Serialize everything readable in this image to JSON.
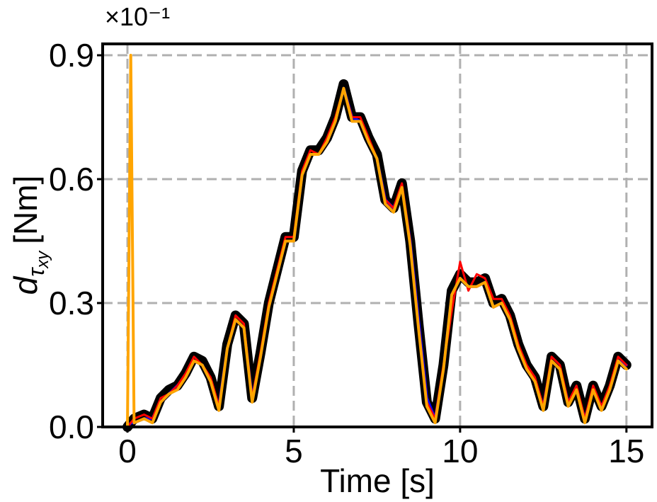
{
  "chart_data": {
    "type": "line",
    "offset_text": "×10⁻¹",
    "xlabel": "Time [s]",
    "ylabel": {
      "symbol": "d",
      "subscript": "τ",
      "subsubscript": "xy",
      "unit": "[Nm]"
    },
    "xlim": [
      -0.745,
      15.77
    ],
    "ylim": [
      0,
      0.9275
    ],
    "xticks": [
      0,
      5,
      10,
      15
    ],
    "yticks": [
      {
        "value": 0,
        "label": "0.0"
      },
      0.3,
      0.6,
      0.9
    ],
    "grid": true,
    "x": [
      0,
      0.1,
      0.2,
      0.5,
      0.75,
      1,
      1.25,
      1.5,
      1.75,
      2,
      2.25,
      2.5,
      2.75,
      3,
      3.25,
      3.5,
      3.75,
      4,
      4.25,
      4.5,
      4.75,
      5,
      5.25,
      5.5,
      5.75,
      6,
      6.25,
      6.5,
      6.75,
      7,
      7.25,
      7.5,
      7.75,
      8,
      8.25,
      8.5,
      8.75,
      9,
      9.25,
      9.5,
      9.75,
      10,
      10.25,
      10.5,
      10.75,
      11,
      11.25,
      11.5,
      11.75,
      12,
      12.25,
      12.5,
      12.75,
      13,
      13.25,
      13.5,
      13.75,
      14,
      14.25,
      14.5,
      14.75,
      15
    ],
    "series": [
      {
        "color": "#000000",
        "width": 14,
        "values": [
          0,
          0.01,
          0.02,
          0.03,
          0.02,
          0.07,
          0.09,
          0.1,
          0.13,
          0.17,
          0.16,
          0.12,
          0.05,
          0.2,
          0.27,
          0.25,
          0.07,
          0.18,
          0.3,
          0.38,
          0.46,
          0.46,
          0.62,
          0.67,
          0.67,
          0.7,
          0.75,
          0.83,
          0.75,
          0.75,
          0.7,
          0.66,
          0.55,
          0.53,
          0.59,
          0.45,
          0.25,
          0.06,
          0.02,
          0.15,
          0.33,
          0.37,
          0.35,
          0.35,
          0.36,
          0.3,
          0.31,
          0.27,
          0.2,
          0.15,
          0.12,
          0.05,
          0.17,
          0.15,
          0.06,
          0.1,
          0.02,
          0.1,
          0.05,
          0.1,
          0.17,
          0.15
        ]
      },
      {
        "color": "#0000ff",
        "width": 4,
        "values": [
          0,
          0.01,
          0.01,
          0.02,
          0.02,
          0.06,
          0.08,
          0.1,
          0.12,
          0.16,
          0.15,
          0.11,
          0.05,
          0.19,
          0.26,
          0.24,
          0.07,
          0.17,
          0.29,
          0.37,
          0.45,
          0.45,
          0.61,
          0.66,
          0.66,
          0.69,
          0.74,
          0.82,
          0.75,
          0.74,
          0.69,
          0.65,
          0.55,
          0.53,
          0.58,
          0.45,
          0.26,
          0.07,
          0.02,
          0.14,
          0.32,
          0.36,
          0.34,
          0.34,
          0.35,
          0.29,
          0.3,
          0.26,
          0.19,
          0.14,
          0.11,
          0.05,
          0.16,
          0.14,
          0.06,
          0.09,
          0.02,
          0.09,
          0.05,
          0.09,
          0.16,
          0.15
        ]
      },
      {
        "color": "#ff0000",
        "width": 3,
        "values": [
          0,
          0.01,
          0.02,
          0.03,
          0.02,
          0.07,
          0.08,
          0.1,
          0.13,
          0.17,
          0.15,
          0.12,
          0.05,
          0.19,
          0.27,
          0.25,
          0.07,
          0.18,
          0.3,
          0.38,
          0.46,
          0.46,
          0.62,
          0.67,
          0.66,
          0.7,
          0.75,
          0.82,
          0.75,
          0.75,
          0.7,
          0.65,
          0.55,
          0.53,
          0.59,
          0.45,
          0.25,
          0.06,
          0.02,
          0.15,
          0.28,
          0.4,
          0.33,
          0.37,
          0.36,
          0.31,
          0.31,
          0.27,
          0.2,
          0.15,
          0.12,
          0.05,
          0.17,
          0.15,
          0.06,
          0.1,
          0.02,
          0.1,
          0.05,
          0.1,
          0.17,
          0.15
        ]
      },
      {
        "color": "#ffa500",
        "width": 4,
        "values": [
          0,
          0.9,
          0.01,
          0.02,
          0.01,
          0.06,
          0.08,
          0.09,
          0.12,
          0.16,
          0.15,
          0.11,
          0.04,
          0.19,
          0.26,
          0.24,
          0.06,
          0.17,
          0.29,
          0.37,
          0.45,
          0.45,
          0.61,
          0.66,
          0.66,
          0.69,
          0.74,
          0.82,
          0.74,
          0.74,
          0.69,
          0.65,
          0.54,
          0.52,
          0.58,
          0.44,
          0.24,
          0.05,
          0.01,
          0.14,
          0.32,
          0.36,
          0.34,
          0.34,
          0.35,
          0.29,
          0.3,
          0.26,
          0.19,
          0.14,
          0.11,
          0.04,
          0.16,
          0.14,
          0.05,
          0.09,
          0.01,
          0.09,
          0.04,
          0.09,
          0.16,
          0.14
        ]
      }
    ]
  }
}
